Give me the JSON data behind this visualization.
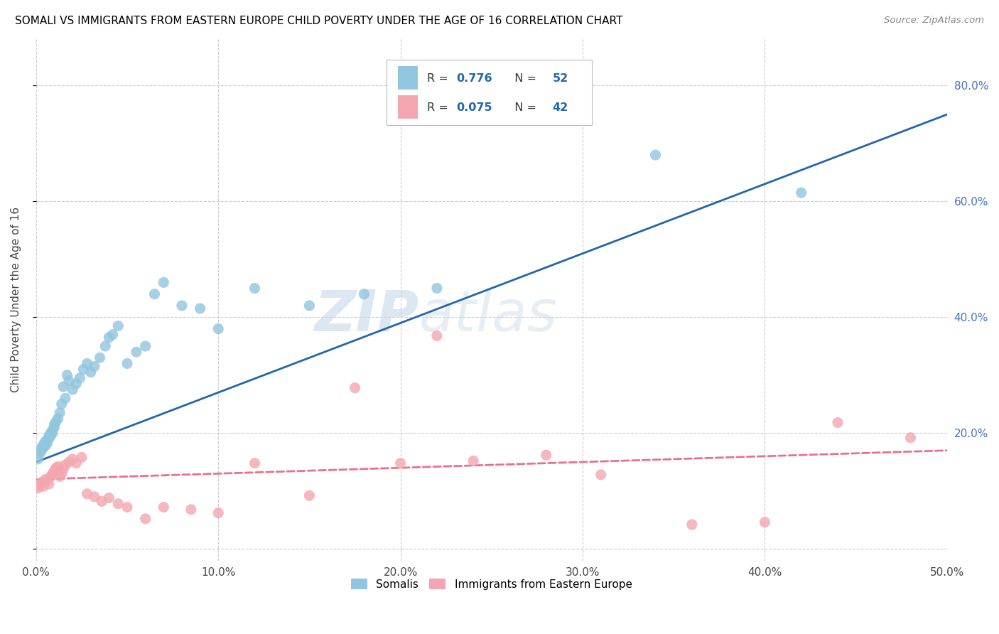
{
  "title": "SOMALI VS IMMIGRANTS FROM EASTERN EUROPE CHILD POVERTY UNDER THE AGE OF 16 CORRELATION CHART",
  "source": "Source: ZipAtlas.com",
  "ylabel": "Child Poverty Under the Age of 16",
  "xlim": [
    0.0,
    0.5
  ],
  "ylim": [
    -0.02,
    0.88
  ],
  "xticks": [
    0.0,
    0.1,
    0.2,
    0.3,
    0.4,
    0.5
  ],
  "yticks": [
    0.0,
    0.2,
    0.4,
    0.6,
    0.8
  ],
  "xticklabels": [
    "0.0%",
    "10.0%",
    "20.0%",
    "30.0%",
    "40.0%",
    "50.0%"
  ],
  "yticklabels_right": [
    "",
    "20.0%",
    "40.0%",
    "60.0%",
    "80.0%"
  ],
  "somali_color": "#92c5de",
  "eastern_color": "#f4a6b0",
  "somali_line_color": "#2166ac",
  "eastern_line_color": "#e8718a",
  "somali_R": "0.776",
  "somali_N": "52",
  "eastern_R": "0.075",
  "eastern_N": "42",
  "legend_label_somali": "Somalis",
  "legend_label_eastern": "Immigrants from Eastern Europe",
  "watermark_zip": "ZIP",
  "watermark_atlas": "atlas",
  "somali_x": [
    0.001,
    0.002,
    0.003,
    0.003,
    0.004,
    0.004,
    0.005,
    0.005,
    0.006,
    0.006,
    0.007,
    0.007,
    0.008,
    0.008,
    0.009,
    0.009,
    0.01,
    0.01,
    0.011,
    0.012,
    0.013,
    0.014,
    0.015,
    0.016,
    0.017,
    0.018,
    0.02,
    0.022,
    0.024,
    0.026,
    0.028,
    0.03,
    0.032,
    0.035,
    0.038,
    0.04,
    0.042,
    0.045,
    0.05,
    0.055,
    0.06,
    0.065,
    0.07,
    0.08,
    0.09,
    0.1,
    0.12,
    0.15,
    0.18,
    0.22,
    0.34,
    0.42
  ],
  "somali_y": [
    0.155,
    0.165,
    0.17,
    0.175,
    0.18,
    0.175,
    0.185,
    0.178,
    0.188,
    0.182,
    0.195,
    0.19,
    0.2,
    0.195,
    0.205,
    0.2,
    0.21,
    0.215,
    0.22,
    0.225,
    0.235,
    0.25,
    0.28,
    0.26,
    0.3,
    0.29,
    0.275,
    0.285,
    0.295,
    0.31,
    0.32,
    0.305,
    0.315,
    0.33,
    0.35,
    0.365,
    0.37,
    0.385,
    0.32,
    0.34,
    0.35,
    0.44,
    0.46,
    0.42,
    0.415,
    0.38,
    0.45,
    0.42,
    0.44,
    0.45,
    0.68,
    0.615
  ],
  "eastern_x": [
    0.001,
    0.002,
    0.003,
    0.004,
    0.005,
    0.006,
    0.007,
    0.008,
    0.009,
    0.01,
    0.011,
    0.012,
    0.013,
    0.014,
    0.015,
    0.016,
    0.018,
    0.02,
    0.022,
    0.025,
    0.028,
    0.032,
    0.036,
    0.04,
    0.045,
    0.05,
    0.06,
    0.07,
    0.085,
    0.1,
    0.12,
    0.15,
    0.175,
    0.2,
    0.22,
    0.24,
    0.28,
    0.31,
    0.36,
    0.4,
    0.44,
    0.48
  ],
  "eastern_y": [
    0.105,
    0.11,
    0.115,
    0.108,
    0.12,
    0.118,
    0.112,
    0.125,
    0.13,
    0.135,
    0.14,
    0.142,
    0.125,
    0.13,
    0.138,
    0.145,
    0.15,
    0.155,
    0.148,
    0.158,
    0.095,
    0.09,
    0.082,
    0.088,
    0.078,
    0.072,
    0.052,
    0.072,
    0.068,
    0.062,
    0.148,
    0.092,
    0.278,
    0.148,
    0.368,
    0.152,
    0.162,
    0.128,
    0.042,
    0.046,
    0.218,
    0.192
  ]
}
